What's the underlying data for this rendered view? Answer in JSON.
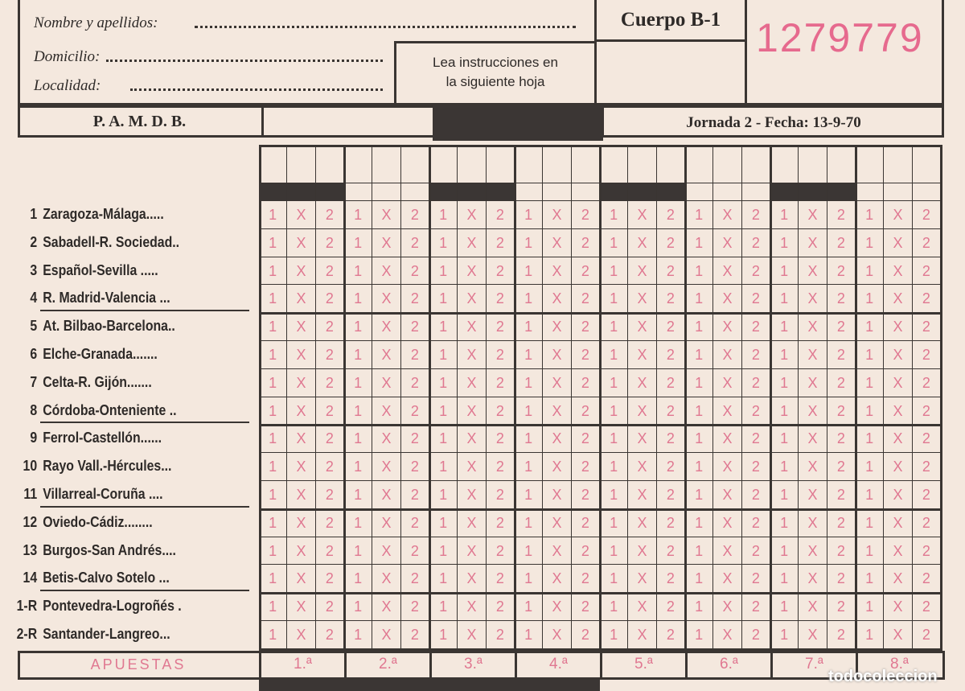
{
  "header": {
    "nombre_label": "Nombre y apellidos:",
    "domicilio_label": "Domicilio:",
    "localidad_label": "Localidad:",
    "instructions": [
      "Lea instrucciones en",
      "la siguiente hoja"
    ],
    "cuerpo": "Cuerpo B-1",
    "serial_number": "1279779",
    "organization": "P. A. M. D. B.",
    "jornada": "Jornada 2 - Fecha: 13-9-70"
  },
  "matches": [
    {
      "num": "1",
      "teams": "Zaragoza-Málaga....."
    },
    {
      "num": "2",
      "teams": "Sabadell-R. Sociedad.."
    },
    {
      "num": "3",
      "teams": "Español-Sevilla ....."
    },
    {
      "num": "4",
      "teams": "R. Madrid-Valencia ..."
    },
    {
      "num": "5",
      "teams": "At. Bilbao-Barcelona.."
    },
    {
      "num": "6",
      "teams": "Elche-Granada......."
    },
    {
      "num": "7",
      "teams": "Celta-R. Gijón......."
    },
    {
      "num": "8",
      "teams": "Córdoba-Onteniente .."
    },
    {
      "num": "9",
      "teams": "Ferrol-Castellón......"
    },
    {
      "num": "10",
      "teams": "Rayo Vall.-Hércules..."
    },
    {
      "num": "11",
      "teams": "Villarreal-Coruña ...."
    },
    {
      "num": "12",
      "teams": "Oviedo-Cádiz........"
    },
    {
      "num": "13",
      "teams": "Burgos-San Andrés...."
    },
    {
      "num": "14",
      "teams": "Betis-Calvo Sotelo ..."
    },
    {
      "num": "1-R",
      "teams": "Pontevedra-Logroñés ."
    },
    {
      "num": "2-R",
      "teams": "Santander-Langreo..."
    }
  ],
  "options": [
    "1",
    "X",
    "2"
  ],
  "apuestas_label": "APUESTAS",
  "apuestas": [
    "1.ª",
    "2.ª",
    "3.ª",
    "4.ª",
    "5.ª",
    "6.ª",
    "7.ª",
    "8.ª"
  ],
  "watermark": "todocoleccion",
  "colors": {
    "ink": "#3a3532",
    "pink": "#e07891",
    "paper": "#f4e8de"
  }
}
